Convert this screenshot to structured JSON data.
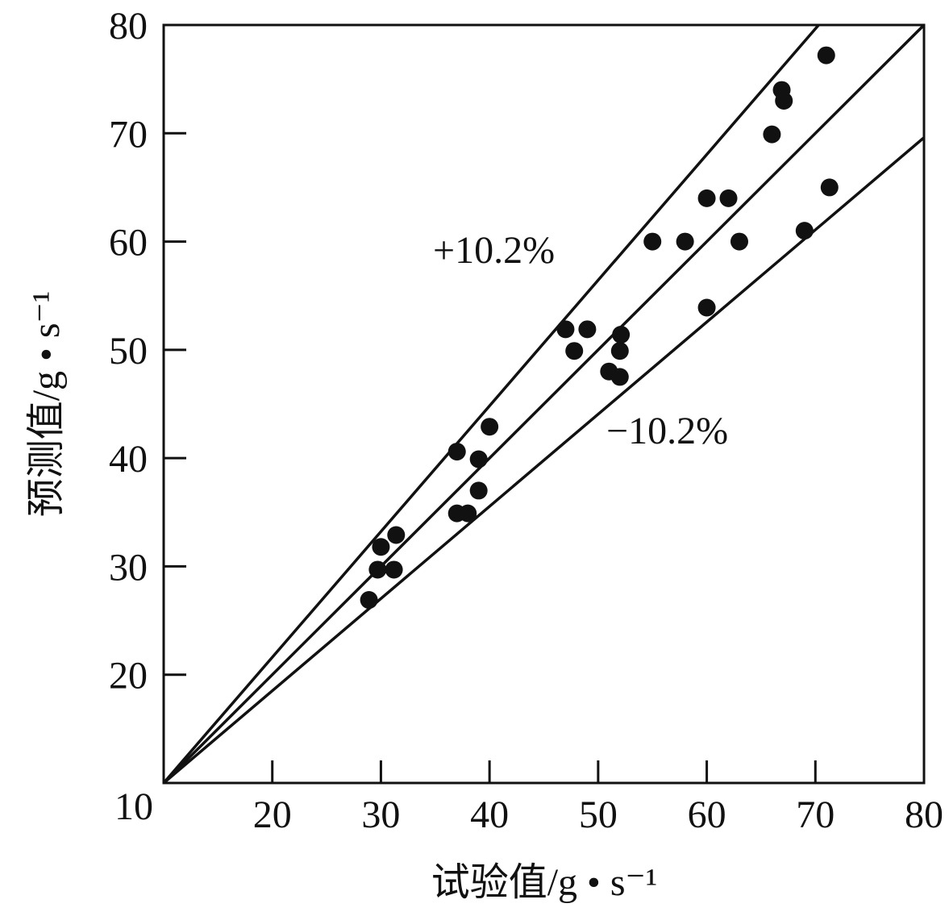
{
  "chart_data": {
    "type": "scatter",
    "xlabel": "试验值/g • s⁻¹",
    "ylabel": "预测值/g • s⁻¹",
    "xlim": [
      10,
      80
    ],
    "ylim": [
      10,
      80
    ],
    "xticks": [
      20,
      30,
      40,
      50,
      60,
      70,
      80
    ],
    "yticks": [
      10,
      20,
      30,
      40,
      50,
      60,
      70,
      80
    ],
    "color": "#111111",
    "series": [
      {
        "x": [
          28.9,
          30.0,
          29.7,
          31.2,
          31.4,
          37.0,
          37.0,
          38.0,
          39.0,
          39.0,
          40.0,
          47.0,
          47.8,
          49.0,
          51.0,
          52.0,
          52.0,
          52.1,
          55.0,
          58.0,
          60.0,
          62.0,
          63.0,
          60.0,
          66.0,
          66.9,
          67.1,
          71.0,
          71.3,
          69.0
        ],
        "values": [
          26.9,
          31.8,
          29.7,
          29.7,
          32.9,
          40.6,
          34.9,
          34.9,
          39.9,
          37.0,
          42.9,
          51.9,
          49.9,
          51.9,
          48.0,
          47.5,
          49.9,
          51.4,
          60.0,
          60.0,
          64.0,
          64.0,
          60.0,
          53.9,
          69.9,
          74.0,
          73.0,
          77.2,
          65.0,
          61.0
        ]
      }
    ],
    "reference_lines": [
      {
        "x": [
          10,
          70.3
        ],
        "y": [
          10,
          80
        ]
      },
      {
        "x": [
          10,
          80
        ],
        "y": [
          10,
          80
        ]
      },
      {
        "x": [
          10,
          80
        ],
        "y": [
          10,
          69.6
        ]
      }
    ],
    "annotations": [
      "+10.2%",
      "−10.2%"
    ]
  }
}
